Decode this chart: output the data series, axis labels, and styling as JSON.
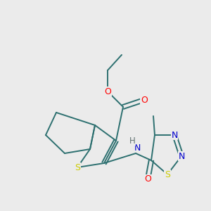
{
  "bg_color": "#ebebeb",
  "bond_color": "#2d7070",
  "atom_colors": {
    "O": "#ff0000",
    "S": "#cccc00",
    "N": "#0000cc",
    "NH": "#607070",
    "methyl": "#2d7070"
  },
  "figsize": [
    3.0,
    3.0
  ],
  "dpi": 100,
  "lw": 1.4,
  "fontsize": 8.5
}
